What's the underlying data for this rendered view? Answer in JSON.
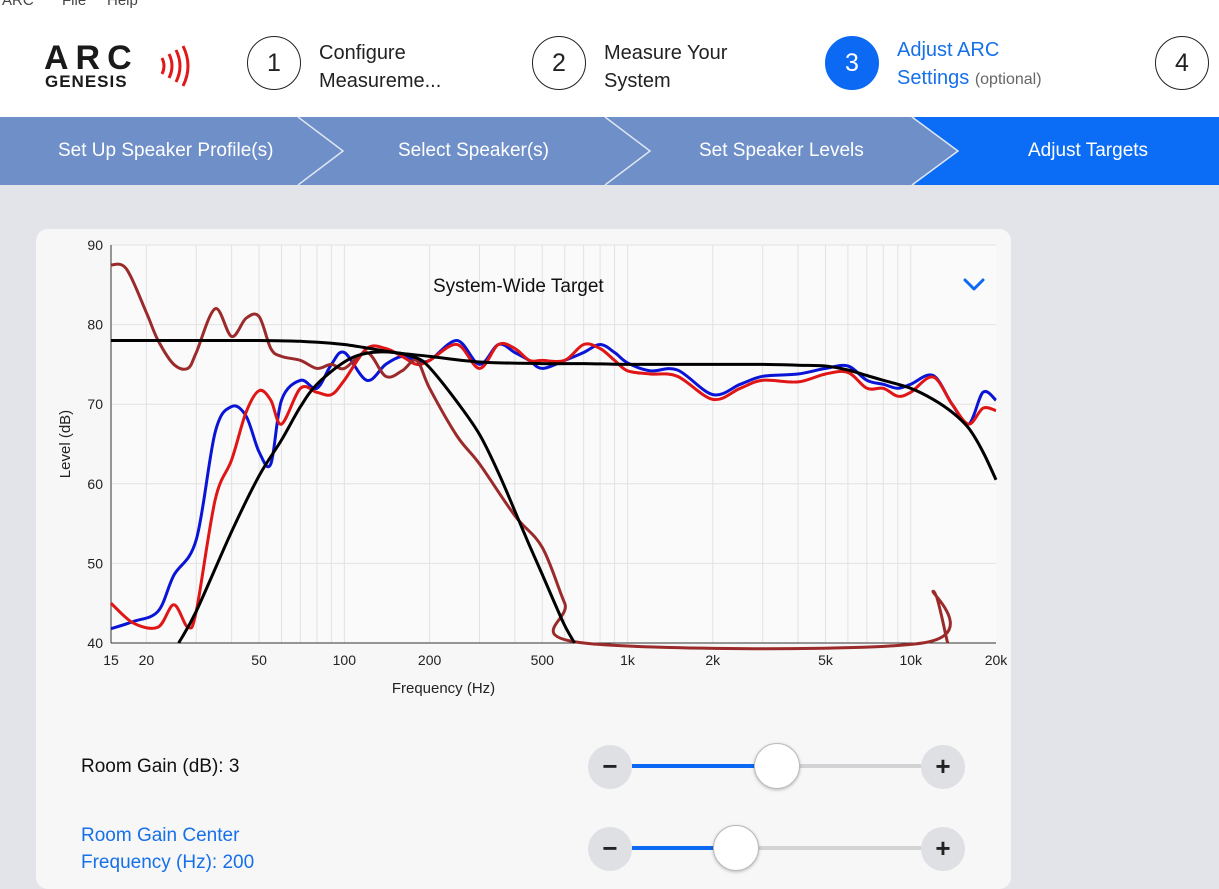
{
  "menu": {
    "items": [
      "ARC",
      "File",
      "Help"
    ]
  },
  "logo": {
    "line1": "ARC",
    "line2": "GENESIS"
  },
  "steps": [
    {
      "number": "1",
      "label_line1": "Configure",
      "label_line2": "Measureme..."
    },
    {
      "number": "2",
      "label_line1": "Measure Your",
      "label_line2": "System"
    },
    {
      "number": "3",
      "label_line1": "Adjust ARC",
      "label_line2": "Settings",
      "optional": "(optional)"
    },
    {
      "number": "4"
    }
  ],
  "substeps": [
    "Set Up Speaker Profile(s)",
    "Select Speaker(s)",
    "Set Speaker Levels",
    "Adjust Targets"
  ],
  "colors": {
    "accent": "#0b69f4",
    "substep_bar": "#6f8fc9",
    "curve_blue": "#0a14d6",
    "curve_red": "#e01515",
    "curve_dark_red": "#9b2b2b",
    "target_black": "#000000"
  },
  "chart": {
    "target_select": "System-Wide Target",
    "dropdown_icon": "chevron-down-icon"
  },
  "chart_data": {
    "type": "line",
    "xlabel": "Frequency (Hz)",
    "ylabel": "Level (dB)",
    "x_scale": "log",
    "xlim": [
      15,
      20000
    ],
    "ylim": [
      40,
      90
    ],
    "x_ticks": [
      "15",
      "20",
      "50",
      "100",
      "200",
      "500",
      "1k",
      "2k",
      "5k",
      "10k",
      "20k"
    ],
    "y_ticks": [
      "90",
      "80",
      "70",
      "60",
      "50",
      "40"
    ],
    "grid": true,
    "series": [
      {
        "color": "#0a14d6",
        "x": [
          15,
          18,
          22,
          25,
          30,
          35,
          40,
          45,
          50,
          55,
          60,
          70,
          80,
          90,
          100,
          120,
          140,
          160,
          180,
          200,
          250,
          300,
          350,
          400,
          450,
          500,
          600,
          700,
          800,
          900,
          1000,
          1200,
          1500,
          2000,
          2500,
          3000,
          4000,
          5000,
          6000,
          7000,
          8000,
          9000,
          10000,
          12000,
          14000,
          16000,
          18000,
          20000
        ],
        "y": [
          41.8,
          42.7,
          44,
          48.5,
          53,
          66.5,
          69.7,
          68.5,
          64,
          62.5,
          70.5,
          73,
          72,
          75,
          76.5,
          73,
          75,
          76,
          75.5,
          75.5,
          78,
          75,
          77.5,
          76.5,
          75.5,
          74.5,
          75.5,
          76.5,
          77.5,
          76.5,
          75.2,
          74.2,
          74.3,
          71.2,
          72.5,
          73.5,
          73.8,
          74.5,
          74.8,
          73,
          72.5,
          72,
          72.5,
          73.6,
          70,
          67.5,
          71.5,
          70.5
        ]
      },
      {
        "color": "#e01515",
        "x": [
          15,
          18,
          22,
          25,
          28,
          30,
          35,
          40,
          45,
          50,
          55,
          60,
          70,
          80,
          90,
          100,
          120,
          140,
          160,
          180,
          200,
          250,
          300,
          350,
          400,
          450,
          500,
          600,
          700,
          800,
          900,
          1000,
          1200,
          1500,
          2000,
          2500,
          3000,
          4000,
          5000,
          6000,
          7000,
          8000,
          9000,
          10000,
          12000,
          14000,
          16000,
          18000,
          20000
        ],
        "y": [
          45,
          42.5,
          42,
          44.8,
          42,
          44,
          58,
          63,
          69,
          71.7,
          70.5,
          67.5,
          72,
          71.5,
          71.2,
          73,
          77,
          77,
          76,
          75,
          75.5,
          77.5,
          74.5,
          77.5,
          77,
          75.5,
          75.5,
          75.5,
          77.5,
          77,
          75.5,
          74.2,
          73.8,
          73.5,
          70.6,
          72,
          73,
          72.8,
          73.8,
          74,
          72,
          72,
          71,
          71.5,
          73.4,
          70,
          67.5,
          69.5,
          69.2
        ]
      },
      {
        "color": "#9b2b2b",
        "x": [
          15,
          17,
          20,
          22,
          25,
          28,
          30,
          35,
          40,
          45,
          50,
          55,
          60,
          70,
          80,
          90,
          100,
          120,
          140,
          160,
          180,
          200,
          250,
          300,
          400,
          500,
          600,
          700,
          11000,
          12000,
          13500
        ],
        "y": [
          87.5,
          87,
          81.5,
          78,
          75,
          74.5,
          76.5,
          82,
          78.5,
          80.8,
          81,
          77,
          76,
          75.5,
          74.5,
          75,
          74.5,
          76.5,
          73.5,
          74.2,
          75.5,
          72,
          66,
          62.5,
          56,
          52,
          45,
          40,
          40,
          46.5,
          40
        ]
      },
      {
        "color": "#000000",
        "x": [
          15,
          30,
          50,
          70,
          100,
          150,
          200,
          300,
          500,
          700,
          1000,
          2000,
          3000,
          4000,
          5000,
          6000,
          7000,
          8000,
          10000,
          12000,
          14000,
          16000,
          18000,
          20000
        ],
        "y": [
          78,
          78,
          78,
          77.9,
          77.5,
          76.5,
          76,
          75.3,
          75.1,
          75.1,
          75,
          75,
          75,
          74.9,
          74.8,
          74.3,
          73.6,
          73,
          72,
          70.6,
          69,
          67,
          64,
          60.5
        ]
      },
      {
        "color": "#000000",
        "x": [
          26,
          30,
          40,
          50,
          60,
          70,
          80,
          100,
          120,
          150,
          180,
          200,
          250,
          300,
          350,
          400,
          450,
          500,
          550,
          600,
          650
        ],
        "y": [
          40,
          44,
          54,
          61,
          65.5,
          69.7,
          72.5,
          75.3,
          76.4,
          76.5,
          75.8,
          74.6,
          70.3,
          66.2,
          61.4,
          56.6,
          52.3,
          48.6,
          45.2,
          42.2,
          40
        ]
      }
    ]
  },
  "room_gain": {
    "label": "Room Gain (dB): 3",
    "value": 3,
    "fraction": 0.5,
    "minus": "−",
    "plus": "+"
  },
  "room_gain_center": {
    "label_line1": "Room Gain Center",
    "label_line2": "Frequency (Hz): 200",
    "fraction": 0.36,
    "minus": "−",
    "plus": "+"
  }
}
